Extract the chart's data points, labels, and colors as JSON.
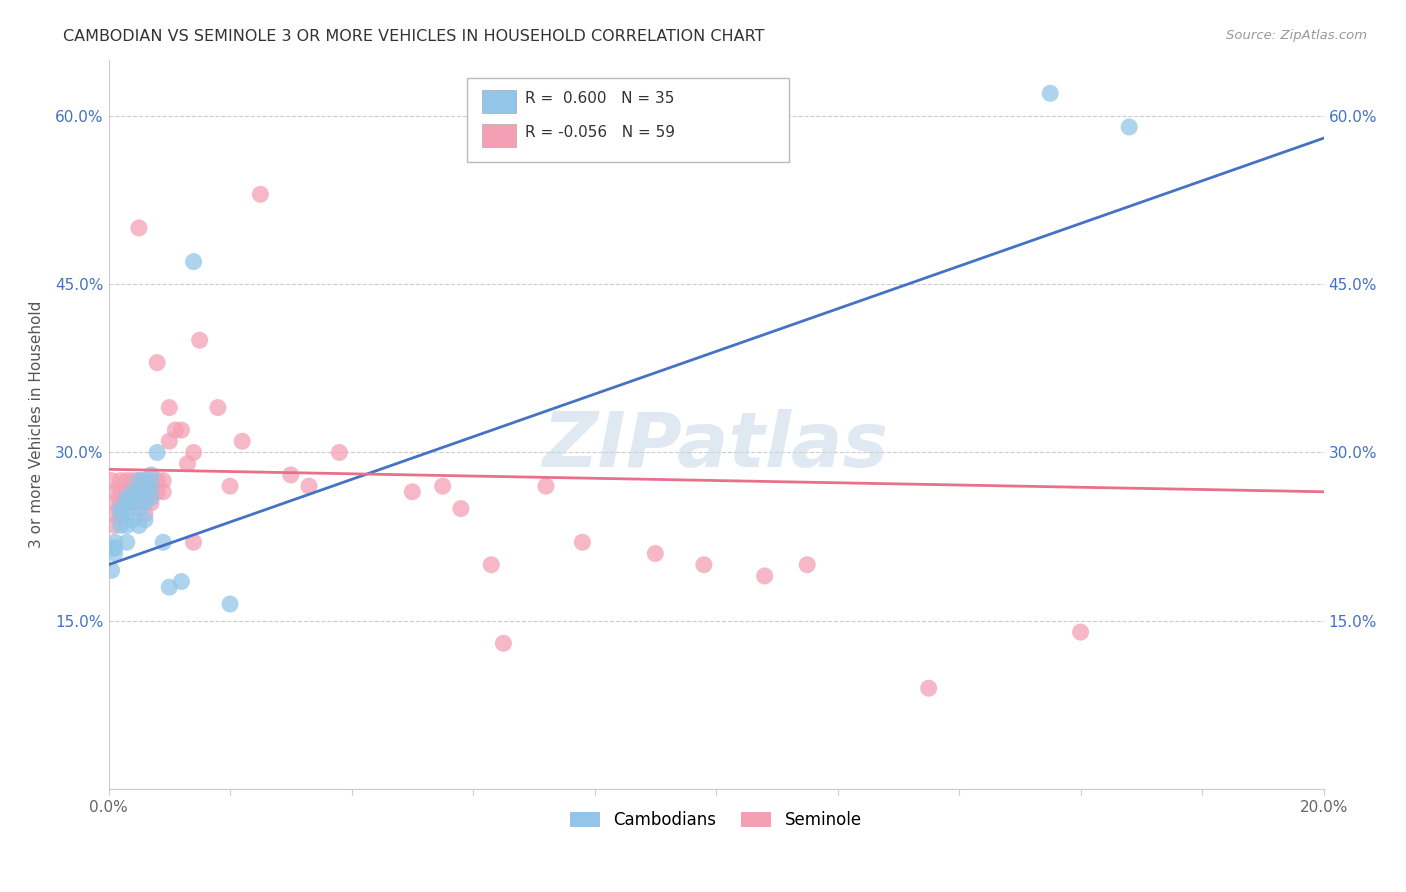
{
  "title": "CAMBODIAN VS SEMINOLE 3 OR MORE VEHICLES IN HOUSEHOLD CORRELATION CHART",
  "source": "Source: ZipAtlas.com",
  "ylabel": "3 or more Vehicles in Household",
  "xlim": [
    0.0,
    0.2
  ],
  "ylim": [
    0.0,
    0.65
  ],
  "xticks": [
    0.0,
    0.02,
    0.04,
    0.06,
    0.08,
    0.1,
    0.12,
    0.14,
    0.16,
    0.18,
    0.2
  ],
  "yticks": [
    0.0,
    0.15,
    0.3,
    0.45,
    0.6
  ],
  "cambodian_color": "#92C5E8",
  "seminole_color": "#F4A0B4",
  "cambodian_line_color": "#4472C4",
  "seminole_line_color": "#E8708A",
  "watermark": "ZIPatlas",
  "cambodian_x": [
    0.0005,
    0.0008,
    0.001,
    0.001,
    0.001,
    0.002,
    0.002,
    0.002,
    0.003,
    0.003,
    0.003,
    0.003,
    0.003,
    0.004,
    0.004,
    0.004,
    0.005,
    0.005,
    0.005,
    0.005,
    0.006,
    0.006,
    0.006,
    0.006,
    0.007,
    0.007,
    0.007,
    0.008,
    0.009,
    0.01,
    0.012,
    0.014,
    0.02,
    0.155,
    0.168
  ],
  "cambodian_y": [
    0.195,
    0.215,
    0.22,
    0.215,
    0.21,
    0.25,
    0.245,
    0.235,
    0.26,
    0.255,
    0.245,
    0.235,
    0.22,
    0.265,
    0.255,
    0.24,
    0.275,
    0.265,
    0.25,
    0.235,
    0.275,
    0.265,
    0.255,
    0.24,
    0.28,
    0.27,
    0.26,
    0.3,
    0.22,
    0.18,
    0.185,
    0.47,
    0.165,
    0.62,
    0.59
  ],
  "seminole_x": [
    0.0005,
    0.001,
    0.001,
    0.001,
    0.001,
    0.002,
    0.002,
    0.002,
    0.002,
    0.003,
    0.003,
    0.003,
    0.004,
    0.004,
    0.004,
    0.005,
    0.005,
    0.005,
    0.005,
    0.006,
    0.006,
    0.006,
    0.006,
    0.007,
    0.007,
    0.007,
    0.008,
    0.008,
    0.008,
    0.009,
    0.009,
    0.01,
    0.01,
    0.011,
    0.012,
    0.013,
    0.014,
    0.014,
    0.015,
    0.018,
    0.02,
    0.022,
    0.025,
    0.03,
    0.033,
    0.038,
    0.05,
    0.055,
    0.058,
    0.063,
    0.065,
    0.072,
    0.078,
    0.09,
    0.098,
    0.108,
    0.115,
    0.135,
    0.16
  ],
  "seminole_y": [
    0.275,
    0.265,
    0.255,
    0.245,
    0.235,
    0.275,
    0.265,
    0.255,
    0.245,
    0.275,
    0.265,
    0.255,
    0.275,
    0.265,
    0.255,
    0.275,
    0.265,
    0.255,
    0.5,
    0.275,
    0.265,
    0.255,
    0.245,
    0.275,
    0.265,
    0.255,
    0.38,
    0.275,
    0.265,
    0.275,
    0.265,
    0.34,
    0.31,
    0.32,
    0.32,
    0.29,
    0.3,
    0.22,
    0.4,
    0.34,
    0.27,
    0.31,
    0.53,
    0.28,
    0.27,
    0.3,
    0.265,
    0.27,
    0.25,
    0.2,
    0.13,
    0.27,
    0.22,
    0.21,
    0.2,
    0.19,
    0.2,
    0.09,
    0.14
  ],
  "blue_line": [
    0.2,
    0.58
  ],
  "pink_line": [
    0.285,
    0.265
  ],
  "line_x": [
    0.0,
    0.2
  ]
}
